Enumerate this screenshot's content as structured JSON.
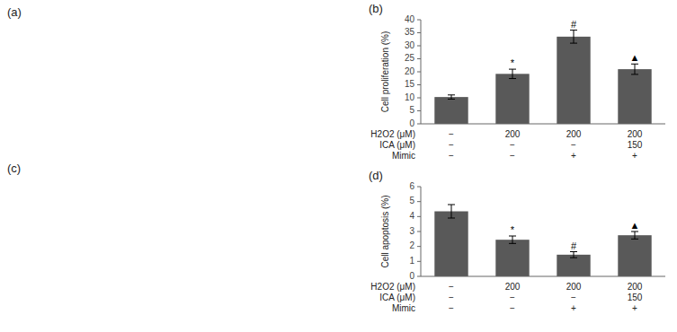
{
  "chart_data": [
    {
      "type": "bar",
      "title": "(b)",
      "ylabel": "Cell proliferation (%)",
      "values": [
        10.3,
        19.2,
        33.5,
        21.0
      ],
      "errors": [
        0.8,
        1.8,
        2.5,
        2.0
      ],
      "color": "#595959",
      "ylim": [
        0,
        40
      ],
      "yticks": [
        0,
        5,
        10,
        15,
        20,
        25,
        30,
        35,
        40
      ],
      "grid": false,
      "annotations": [
        null,
        "*",
        "#",
        "▲"
      ],
      "category_rows": [
        {
          "name": "H2O2 (μM)",
          "labels": [
            "−",
            "200",
            "200",
            "200"
          ]
        },
        {
          "name": "ICA (μM)",
          "labels": [
            "−",
            "−",
            "−",
            "150"
          ]
        },
        {
          "name": "Mimic",
          "labels": [
            "−",
            "−",
            "+",
            "+"
          ]
        }
      ]
    },
    {
      "type": "bar",
      "title": "(d)",
      "ylabel": "Cell apoptosis (%)",
      "values": [
        4.35,
        2.45,
        1.45,
        2.75
      ],
      "errors": [
        0.45,
        0.25,
        0.2,
        0.25
      ],
      "color": "#595959",
      "ylim": [
        0,
        6
      ],
      "yticks": [
        0,
        1,
        2,
        3,
        4,
        5,
        6
      ],
      "grid": false,
      "annotations": [
        null,
        "*",
        "#",
        "▲"
      ],
      "category_rows": [
        {
          "name": "H2O2 (μM)",
          "labels": [
            "−",
            "200",
            "200",
            "200"
          ]
        },
        {
          "name": "ICA (μM)",
          "labels": [
            "−",
            "−",
            "−",
            "150"
          ]
        },
        {
          "name": "Mimic",
          "labels": [
            "−",
            "−",
            "+",
            "+"
          ]
        }
      ]
    }
  ],
  "panel_labels": [
    "(a)",
    "(c)"
  ]
}
